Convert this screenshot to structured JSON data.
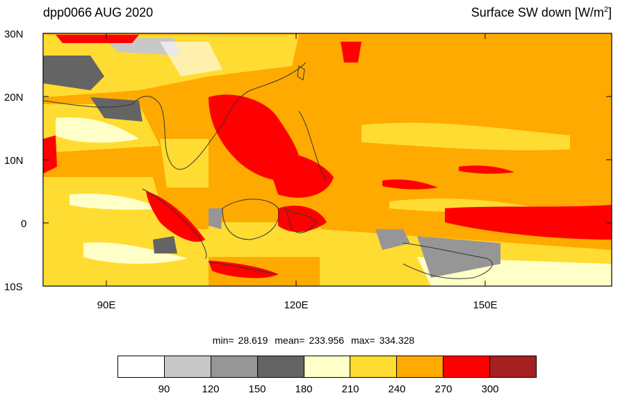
{
  "header": {
    "left_title": "dpp0066 AUG 2020",
    "right_title_main": "Surface SW down [W/m",
    "right_title_sup": "2",
    "right_title_end": "]"
  },
  "axes": {
    "lat_labels": [
      "30N",
      "20N",
      "10N",
      "0",
      "10S"
    ],
    "lon_labels": [
      "90E",
      "120E",
      "150E"
    ]
  },
  "stats": {
    "min_label": "min=",
    "min_value": "28.619",
    "mean_label": "mean=",
    "mean_value": "233.956",
    "max_label": "max=",
    "max_value": "334.328"
  },
  "colorbar": {
    "colors": [
      "#ffffff",
      "#c8c8c8",
      "#969696",
      "#646464",
      "#ffffc8",
      "#ffdc32",
      "#ffaa00",
      "#ff0000",
      "#a52020"
    ],
    "labels": [
      "90",
      "120",
      "150",
      "180",
      "210",
      "240",
      "270",
      "300"
    ]
  },
  "map_colors": {
    "ocean_base": "#ffaa00",
    "land_outline": "#333333",
    "frame": "#000000"
  }
}
